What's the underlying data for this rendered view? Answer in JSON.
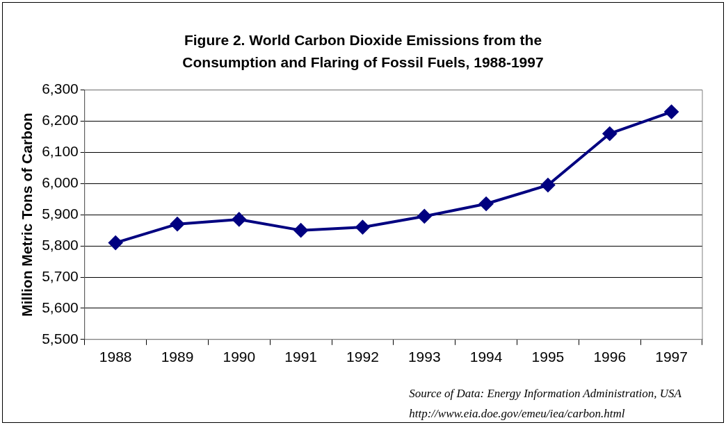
{
  "chart_data": {
    "type": "line",
    "title": "Figure 2. World Carbon Dioxide Emissions from the Consumption and Flaring of Fossil Fuels, 1988-1997",
    "ylabel": "Million Metric Tons of Carbon",
    "categories": [
      "1988",
      "1989",
      "1990",
      "1991",
      "1992",
      "1993",
      "1994",
      "1995",
      "1996",
      "1997"
    ],
    "series": [
      {
        "color": "#000080",
        "values": [
          5810,
          5870,
          5885,
          5850,
          5860,
          5895,
          5935,
          5995,
          6160,
          6230
        ]
      }
    ],
    "ylim": [
      5500,
      6300
    ],
    "yticks": [
      {
        "value": 5500,
        "label": "5,500"
      },
      {
        "value": 5600,
        "label": "5,600"
      },
      {
        "value": 5700,
        "label": "5,700"
      },
      {
        "value": 5800,
        "label": "5,800"
      },
      {
        "value": 5900,
        "label": "5,900"
      },
      {
        "value": 6000,
        "label": "6,000"
      },
      {
        "value": 6100,
        "label": "6,100"
      },
      {
        "value": 6200,
        "label": "6,200"
      },
      {
        "value": 6300,
        "label": "6,300"
      }
    ],
    "grid": "y",
    "legend": false,
    "marker": "diamond",
    "line_style": "solid",
    "annotations": [
      "Source of Data: Energy Information Administration, USA",
      "http://www.eia.doe.gov/emeu/iea/carbon.html"
    ]
  }
}
